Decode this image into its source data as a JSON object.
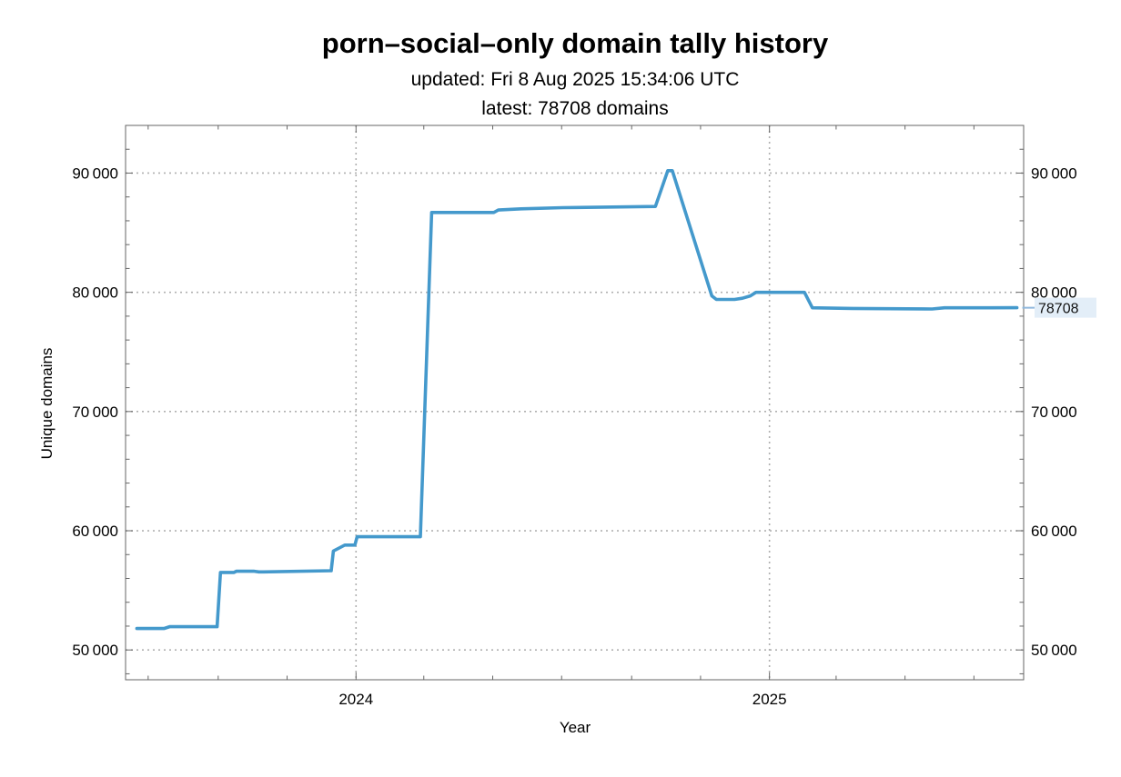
{
  "chart_data": {
    "type": "line",
    "title": "porn–social–only domain tally history",
    "subtitle_updated": "updated: Fri 8 Aug 2025 15:34:06 UTC",
    "subtitle_latest": "latest: 78708 domains",
    "xlabel": "Year",
    "ylabel": "Unique domains",
    "ylim": [
      47500,
      94000
    ],
    "yticks": [
      50000,
      60000,
      70000,
      80000,
      90000
    ],
    "ytick_labels": [
      "50 000",
      "60 000",
      "70 000",
      "80 000",
      "90 000"
    ],
    "xlim": [
      "2023-06-11",
      "2025-08-14"
    ],
    "xticks": [
      "2024-01-01",
      "2025-01-01"
    ],
    "xtick_labels": [
      "2024",
      "2025"
    ],
    "grid": true,
    "latest_value": 78708,
    "latest_label": "78708",
    "line_color": "#4499cc",
    "latest_tag_color": "#e3eef8",
    "series": [
      {
        "x": [
          "2023-06-21",
          "2023-07-15",
          "2023-07-20",
          "2023-08-31",
          "2023-09-03",
          "2023-09-15",
          "2023-09-17",
          "2023-10-03",
          "2023-10-07",
          "2023-10-11",
          "2023-12-10",
          "2023-12-12",
          "2023-12-22",
          "2023-12-31",
          "2024-01-02",
          "2024-02-27",
          "2024-03-08",
          "2024-05-02",
          "2024-05-06",
          "2024-05-26",
          "2024-07-02",
          "2024-09-22",
          "2024-10-03",
          "2024-10-07",
          "2024-11-11",
          "2024-11-15",
          "2024-12-01",
          "2024-12-08",
          "2024-12-15",
          "2024-12-20",
          "2025-01-05",
          "2025-02-01",
          "2025-02-08",
          "2025-03-15",
          "2025-05-25",
          "2025-06-05",
          "2025-07-15",
          "2025-08-08"
        ],
        "values": [
          51800,
          51800,
          51950,
          51950,
          56500,
          56500,
          56600,
          56600,
          56550,
          56550,
          56650,
          58300,
          58800,
          58800,
          59500,
          59500,
          86700,
          86700,
          86900,
          87000,
          87100,
          87200,
          90200,
          90200,
          79700,
          79400,
          79400,
          79500,
          79700,
          80000,
          80000,
          80000,
          78700,
          78650,
          78600,
          78700,
          78700,
          78708
        ]
      }
    ]
  }
}
